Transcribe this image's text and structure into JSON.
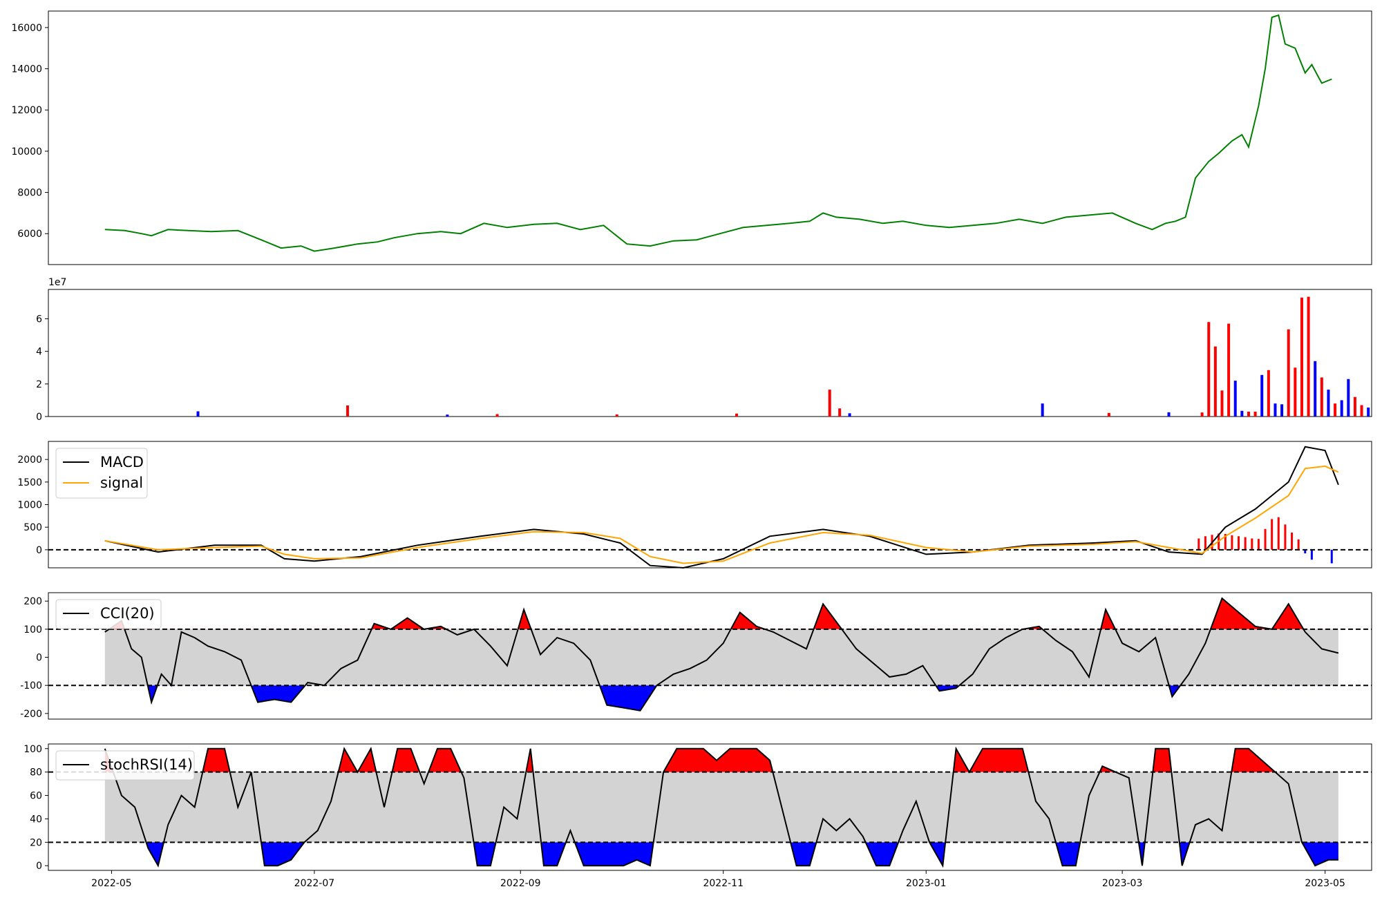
{
  "chart_data": [
    {
      "type": "line",
      "panel": "price",
      "xlim": [
        "2022-04-12",
        "2023-05-15"
      ],
      "ylim": [
        4500,
        16800
      ],
      "yticks": [
        6000,
        8000,
        10000,
        12000,
        14000,
        16000
      ],
      "color": "#008000",
      "series": [
        {
          "x": [
            "2022-04-29",
            "2022-05-05",
            "2022-05-10",
            "2022-05-13",
            "2022-05-18",
            "2022-05-24",
            "2022-05-31",
            "2022-06-08",
            "2022-06-15",
            "2022-06-21",
            "2022-06-27",
            "2022-07-01",
            "2022-07-07",
            "2022-07-14",
            "2022-07-20",
            "2022-07-25",
            "2022-08-01",
            "2022-08-08",
            "2022-08-14",
            "2022-08-21",
            "2022-08-28",
            "2022-09-05",
            "2022-09-12",
            "2022-09-19",
            "2022-09-26",
            "2022-10-03",
            "2022-10-10",
            "2022-10-17",
            "2022-10-24",
            "2022-10-31",
            "2022-11-07",
            "2022-11-14",
            "2022-11-21",
            "2022-11-27",
            "2022-12-01",
            "2022-12-05",
            "2022-12-12",
            "2022-12-19",
            "2022-12-25",
            "2023-01-01",
            "2023-01-08",
            "2023-01-15",
            "2023-01-22",
            "2023-01-29",
            "2023-02-05",
            "2023-02-12",
            "2023-02-19",
            "2023-02-26",
            "2023-03-05",
            "2023-03-10",
            "2023-03-14",
            "2023-03-17",
            "2023-03-20",
            "2023-03-23",
            "2023-03-27",
            "2023-03-30",
            "2023-04-03",
            "2023-04-06",
            "2023-04-08",
            "2023-04-11",
            "2023-04-13",
            "2023-04-15",
            "2023-04-17",
            "2023-04-19",
            "2023-04-22",
            "2023-04-25",
            "2023-04-27",
            "2023-04-30",
            "2023-05-03"
          ],
          "values": [
            6200,
            6150,
            6000,
            5900,
            6200,
            6150,
            6100,
            6150,
            5700,
            5300,
            5400,
            5150,
            5300,
            5500,
            5600,
            5800,
            6000,
            6100,
            6000,
            6500,
            6300,
            6450,
            6500,
            6200,
            6400,
            5500,
            5400,
            5650,
            5700,
            6000,
            6300,
            6400,
            6500,
            6600,
            7000,
            6800,
            6700,
            6500,
            6600,
            6400,
            6300,
            6400,
            6500,
            6700,
            6500,
            6800,
            6900,
            7000,
            6500,
            6200,
            6500,
            6600,
            6800,
            8700,
            9500,
            9900,
            10500,
            10800,
            10200,
            12200,
            14000,
            16500,
            16600,
            15200,
            15000,
            13800,
            14200,
            13300,
            13500
          ]
        }
      ]
    },
    {
      "type": "bar",
      "panel": "volume",
      "xlim": [
        "2022-04-12",
        "2023-05-15"
      ],
      "ylim": [
        0,
        78000000
      ],
      "yticks": [
        0,
        20000000,
        40000000,
        60000000
      ],
      "ytick_labels": [
        "0",
        "2",
        "4",
        "6"
      ],
      "offset_label": "1e7",
      "colors": {
        "up": "#ff0000",
        "down": "#0000ff"
      },
      "bars": [
        {
          "x": "2022-05-27",
          "v": 3200000,
          "c": "down"
        },
        {
          "x": "2022-07-11",
          "v": 6800000,
          "c": "up"
        },
        {
          "x": "2022-08-10",
          "v": 1200000,
          "c": "down"
        },
        {
          "x": "2022-08-25",
          "v": 1500000,
          "c": "up"
        },
        {
          "x": "2022-09-30",
          "v": 1300000,
          "c": "up"
        },
        {
          "x": "2022-11-05",
          "v": 1800000,
          "c": "up"
        },
        {
          "x": "2022-12-03",
          "v": 16500000,
          "c": "up"
        },
        {
          "x": "2022-12-06",
          "v": 5000000,
          "c": "up"
        },
        {
          "x": "2022-12-09",
          "v": 2000000,
          "c": "down"
        },
        {
          "x": "2023-02-05",
          "v": 8000000,
          "c": "down"
        },
        {
          "x": "2023-02-25",
          "v": 2200000,
          "c": "up"
        },
        {
          "x": "2023-03-15",
          "v": 2600000,
          "c": "down"
        },
        {
          "x": "2023-03-25",
          "v": 2500000,
          "c": "up"
        },
        {
          "x": "2023-03-27",
          "v": 58000000,
          "c": "up"
        },
        {
          "x": "2023-03-29",
          "v": 43000000,
          "c": "up"
        },
        {
          "x": "2023-03-31",
          "v": 16000000,
          "c": "up"
        },
        {
          "x": "2023-04-02",
          "v": 57000000,
          "c": "up"
        },
        {
          "x": "2023-04-04",
          "v": 22000000,
          "c": "down"
        },
        {
          "x": "2023-04-06",
          "v": 3500000,
          "c": "down"
        },
        {
          "x": "2023-04-08",
          "v": 3000000,
          "c": "up"
        },
        {
          "x": "2023-04-10",
          "v": 3000000,
          "c": "up"
        },
        {
          "x": "2023-04-12",
          "v": 25500000,
          "c": "down"
        },
        {
          "x": "2023-04-14",
          "v": 28500000,
          "c": "up"
        },
        {
          "x": "2023-04-16",
          "v": 8000000,
          "c": "down"
        },
        {
          "x": "2023-04-18",
          "v": 7500000,
          "c": "down"
        },
        {
          "x": "2023-04-20",
          "v": 53500000,
          "c": "up"
        },
        {
          "x": "2023-04-22",
          "v": 30000000,
          "c": "up"
        },
        {
          "x": "2023-04-24",
          "v": 73000000,
          "c": "up"
        },
        {
          "x": "2023-04-26",
          "v": 73500000,
          "c": "up"
        },
        {
          "x": "2023-04-28",
          "v": 34000000,
          "c": "down"
        },
        {
          "x": "2023-04-30",
          "v": 24000000,
          "c": "up"
        },
        {
          "x": "2023-05-02",
          "v": 16500000,
          "c": "down"
        },
        {
          "x": "2023-05-04",
          "v": 8000000,
          "c": "up"
        },
        {
          "x": "2023-05-06",
          "v": 10000000,
          "c": "down"
        },
        {
          "x": "2023-05-08",
          "v": 23000000,
          "c": "down"
        },
        {
          "x": "2023-05-10",
          "v": 12000000,
          "c": "up"
        },
        {
          "x": "2023-05-12",
          "v": 7000000,
          "c": "up"
        },
        {
          "x": "2023-05-14",
          "v": 5500000,
          "c": "down"
        }
      ]
    },
    {
      "type": "line",
      "panel": "macd",
      "xlim": [
        "2022-04-12",
        "2023-05-15"
      ],
      "ylim": [
        -400,
        2400
      ],
      "yticks": [
        0,
        500,
        1000,
        1500,
        2000
      ],
      "legend": {
        "position": "upper-left",
        "entries": [
          "MACD",
          "signal"
        ]
      },
      "zero_line": 0,
      "series": [
        {
          "name": "MACD",
          "color": "#000000",
          "x": [
            "2022-04-29",
            "2022-05-15",
            "2022-06-01",
            "2022-06-15",
            "2022-06-22",
            "2022-07-01",
            "2022-07-15",
            "2022-08-01",
            "2022-08-20",
            "2022-09-05",
            "2022-09-20",
            "2022-10-01",
            "2022-10-10",
            "2022-10-20",
            "2022-11-01",
            "2022-11-15",
            "2022-12-01",
            "2022-12-15",
            "2023-01-01",
            "2023-01-15",
            "2023-02-01",
            "2023-02-20",
            "2023-03-05",
            "2023-03-15",
            "2023-03-25",
            "2023-04-01",
            "2023-04-10",
            "2023-04-20",
            "2023-04-25",
            "2023-05-01",
            "2023-05-05"
          ],
          "values": [
            200,
            -50,
            100,
            100,
            -200,
            -250,
            -150,
            100,
            300,
            450,
            350,
            150,
            -350,
            -400,
            -200,
            300,
            450,
            300,
            -100,
            -50,
            100,
            150,
            200,
            -50,
            -100,
            500,
            900,
            1500,
            2280,
            2200,
            1440
          ]
        },
        {
          "name": "signal",
          "color": "#ffa500",
          "x": [
            "2022-04-29",
            "2022-05-15",
            "2022-06-01",
            "2022-06-15",
            "2022-06-22",
            "2022-07-01",
            "2022-07-15",
            "2022-08-01",
            "2022-08-20",
            "2022-09-05",
            "2022-09-20",
            "2022-10-01",
            "2022-10-10",
            "2022-10-20",
            "2022-11-01",
            "2022-11-15",
            "2022-12-01",
            "2022-12-15",
            "2023-01-01",
            "2023-01-15",
            "2023-02-01",
            "2023-02-20",
            "2023-03-05",
            "2023-03-15",
            "2023-03-25",
            "2023-04-01",
            "2023-04-10",
            "2023-04-20",
            "2023-04-25",
            "2023-05-01",
            "2023-05-05"
          ],
          "values": [
            200,
            0,
            50,
            80,
            -100,
            -200,
            -180,
            50,
            250,
            400,
            380,
            250,
            -150,
            -300,
            -250,
            150,
            380,
            320,
            50,
            -50,
            80,
            120,
            180,
            50,
            -80,
            300,
            700,
            1200,
            1800,
            1850,
            1720
          ]
        }
      ],
      "histogram_bars": [
        {
          "x": "2023-03-24",
          "v": 250
        },
        {
          "x": "2023-03-26",
          "v": 300
        },
        {
          "x": "2023-03-28",
          "v": 330
        },
        {
          "x": "2023-03-30",
          "v": 360
        },
        {
          "x": "2023-04-01",
          "v": 350
        },
        {
          "x": "2023-04-03",
          "v": 320
        },
        {
          "x": "2023-04-05",
          "v": 300
        },
        {
          "x": "2023-04-07",
          "v": 280
        },
        {
          "x": "2023-04-09",
          "v": 250
        },
        {
          "x": "2023-04-11",
          "v": 240
        },
        {
          "x": "2023-04-13",
          "v": 460
        },
        {
          "x": "2023-04-15",
          "v": 680
        },
        {
          "x": "2023-04-17",
          "v": 720
        },
        {
          "x": "2023-04-19",
          "v": 560
        },
        {
          "x": "2023-04-21",
          "v": 380
        },
        {
          "x": "2023-04-23",
          "v": 230
        },
        {
          "x": "2023-04-25",
          "v": -80
        },
        {
          "x": "2023-04-27",
          "v": -220
        },
        {
          "x": "2023-05-03",
          "v": -300
        }
      ]
    },
    {
      "type": "area",
      "panel": "cci",
      "xlim": [
        "2022-04-12",
        "2023-05-15"
      ],
      "ylim": [
        -220,
        230
      ],
      "yticks": [
        -200,
        -100,
        0,
        100,
        200
      ],
      "legend": {
        "position": "upper-left",
        "entries": [
          "CCI(20)"
        ]
      },
      "bands": [
        -100,
        100
      ],
      "colors": {
        "above": "#ff0000",
        "below": "#0000ff",
        "band": "#d3d3d3"
      },
      "x": [
        "2022-04-29",
        "2022-05-04",
        "2022-05-07",
        "2022-05-10",
        "2022-05-13",
        "2022-05-16",
        "2022-05-19",
        "2022-05-22",
        "2022-05-26",
        "2022-05-30",
        "2022-06-04",
        "2022-06-09",
        "2022-06-14",
        "2022-06-19",
        "2022-06-24",
        "2022-06-29",
        "2022-07-04",
        "2022-07-09",
        "2022-07-14",
        "2022-07-19",
        "2022-07-24",
        "2022-07-29",
        "2022-08-03",
        "2022-08-08",
        "2022-08-13",
        "2022-08-18",
        "2022-08-23",
        "2022-08-28",
        "2022-09-02",
        "2022-09-07",
        "2022-09-12",
        "2022-09-17",
        "2022-09-22",
        "2022-09-27",
        "2022-10-02",
        "2022-10-07",
        "2022-10-12",
        "2022-10-17",
        "2022-10-22",
        "2022-10-27",
        "2022-11-01",
        "2022-11-06",
        "2022-11-11",
        "2022-11-16",
        "2022-11-21",
        "2022-11-26",
        "2022-12-01",
        "2022-12-06",
        "2022-12-11",
        "2022-12-16",
        "2022-12-21",
        "2022-12-26",
        "2022-12-31",
        "2023-01-05",
        "2023-01-10",
        "2023-01-15",
        "2023-01-20",
        "2023-01-25",
        "2023-01-30",
        "2023-02-04",
        "2023-02-09",
        "2023-02-14",
        "2023-02-19",
        "2023-02-24",
        "2023-03-01",
        "2023-03-06",
        "2023-03-11",
        "2023-03-16",
        "2023-03-21",
        "2023-03-26",
        "2023-03-31",
        "2023-04-05",
        "2023-04-10",
        "2023-04-15",
        "2023-04-20",
        "2023-04-25",
        "2023-04-30",
        "2023-05-05"
      ],
      "values": [
        90,
        130,
        30,
        0,
        -160,
        -60,
        -100,
        90,
        70,
        40,
        20,
        -10,
        -160,
        -150,
        -160,
        -90,
        -100,
        -40,
        -10,
        120,
        100,
        140,
        100,
        110,
        80,
        100,
        40,
        -30,
        170,
        10,
        70,
        50,
        -10,
        -170,
        -180,
        -190,
        -100,
        -60,
        -40,
        -10,
        50,
        160,
        110,
        90,
        60,
        30,
        190,
        110,
        30,
        -20,
        -70,
        -60,
        -30,
        -120,
        -110,
        -60,
        30,
        70,
        100,
        110,
        60,
        20,
        -70,
        170,
        50,
        20,
        70,
        -140,
        -60,
        50,
        210,
        160,
        110,
        100,
        190,
        90,
        30,
        15
      ]
    },
    {
      "type": "area",
      "panel": "stochrsi",
      "xlim": [
        "2022-04-12",
        "2023-05-15"
      ],
      "ylim": [
        -4,
        104
      ],
      "yticks": [
        0,
        20,
        40,
        60,
        80,
        100
      ],
      "legend": {
        "position": "upper-left",
        "entries": [
          "stochRSI(14)"
        ]
      },
      "bands": [
        20,
        80
      ],
      "colors": {
        "above": "#ff0000",
        "below": "#0000ff",
        "band": "#d3d3d3"
      },
      "x": [
        "2022-04-29",
        "2022-05-04",
        "2022-05-08",
        "2022-05-12",
        "2022-05-15",
        "2022-05-18",
        "2022-05-22",
        "2022-05-26",
        "2022-05-30",
        "2022-06-04",
        "2022-06-08",
        "2022-06-12",
        "2022-06-16",
        "2022-06-20",
        "2022-06-24",
        "2022-06-28",
        "2022-07-02",
        "2022-07-06",
        "2022-07-10",
        "2022-07-14",
        "2022-07-18",
        "2022-07-22",
        "2022-07-26",
        "2022-07-30",
        "2022-08-03",
        "2022-08-07",
        "2022-08-11",
        "2022-08-15",
        "2022-08-19",
        "2022-08-23",
        "2022-08-27",
        "2022-08-31",
        "2022-09-04",
        "2022-09-08",
        "2022-09-12",
        "2022-09-16",
        "2022-09-20",
        "2022-09-24",
        "2022-09-28",
        "2022-10-02",
        "2022-10-06",
        "2022-10-10",
        "2022-10-14",
        "2022-10-18",
        "2022-10-22",
        "2022-10-26",
        "2022-10-30",
        "2022-11-03",
        "2022-11-07",
        "2022-11-11",
        "2022-11-15",
        "2022-11-19",
        "2022-11-23",
        "2022-11-27",
        "2022-12-01",
        "2022-12-05",
        "2022-12-09",
        "2022-12-13",
        "2022-12-17",
        "2022-12-21",
        "2022-12-25",
        "2022-12-29",
        "2023-01-02",
        "2023-01-06",
        "2023-01-10",
        "2023-01-14",
        "2023-01-18",
        "2023-01-22",
        "2023-01-26",
        "2023-01-30",
        "2023-02-03",
        "2023-02-07",
        "2023-02-11",
        "2023-02-15",
        "2023-02-19",
        "2023-02-23",
        "2023-02-27",
        "2023-03-03",
        "2023-03-07",
        "2023-03-11",
        "2023-03-15",
        "2023-03-19",
        "2023-03-23",
        "2023-03-27",
        "2023-03-31",
        "2023-04-04",
        "2023-04-08",
        "2023-04-12",
        "2023-04-16",
        "2023-04-20",
        "2023-04-24",
        "2023-04-28",
        "2023-05-02",
        "2023-05-05"
      ],
      "values": [
        100,
        60,
        50,
        15,
        0,
        35,
        60,
        50,
        100,
        100,
        50,
        80,
        0,
        0,
        5,
        20,
        30,
        55,
        100,
        80,
        100,
        50,
        100,
        100,
        70,
        100,
        100,
        75,
        0,
        0,
        50,
        40,
        100,
        0,
        0,
        30,
        0,
        0,
        0,
        0,
        5,
        0,
        80,
        100,
        100,
        100,
        90,
        100,
        100,
        100,
        90,
        45,
        0,
        0,
        40,
        30,
        40,
        25,
        0,
        0,
        30,
        55,
        20,
        0,
        100,
        80,
        100,
        100,
        100,
        100,
        55,
        40,
        0,
        0,
        60,
        85,
        80,
        75,
        0,
        100,
        100,
        0,
        35,
        40,
        30,
        100,
        100,
        90,
        80,
        70,
        20,
        0,
        5,
        5
      ]
    }
  ],
  "shared_x_axis": {
    "ticks": [
      "2022-05-01",
      "2022-07-01",
      "2022-09-01",
      "2022-11-01",
      "2023-01-01",
      "2023-03-01",
      "2023-05-01"
    ],
    "labels": [
      "2022-05",
      "2022-07",
      "2022-09",
      "2022-11",
      "2023-01",
      "2023-03",
      "2023-05"
    ]
  }
}
